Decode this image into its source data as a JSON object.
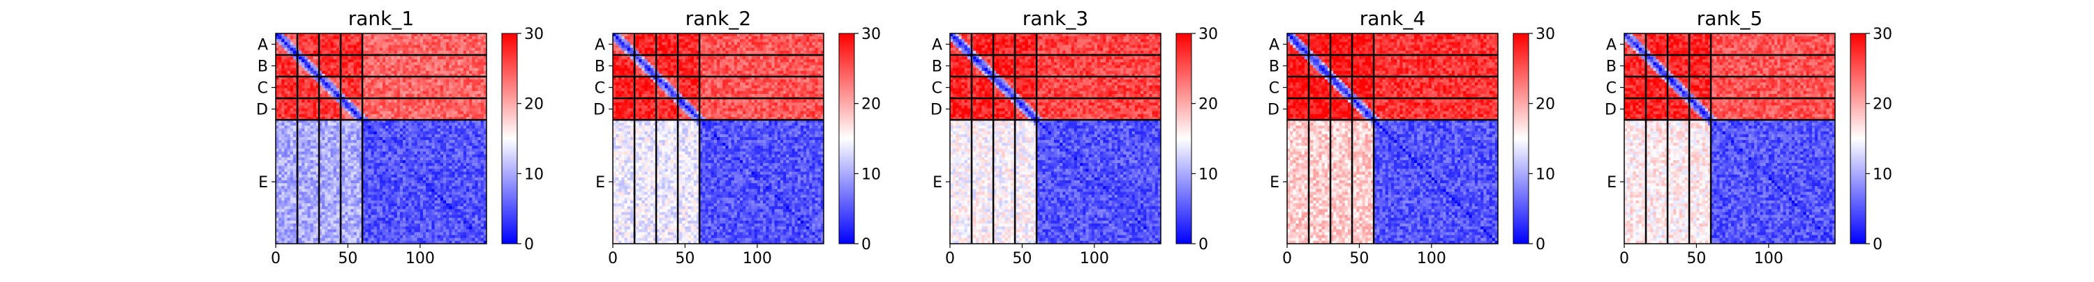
{
  "chart_data": [
    {
      "type": "heatmap",
      "title": "rank_1",
      "chains": [
        "A",
        "B",
        "C",
        "D",
        "E"
      ],
      "chain_boundaries": [
        0,
        15,
        30,
        45,
        60,
        146
      ],
      "n_residues": 146,
      "xticks": [
        0,
        50,
        100
      ],
      "colorbar": {
        "min": 0,
        "max": 30,
        "ticks": [
          0,
          10,
          20,
          30
        ],
        "cmap": "bwr"
      },
      "blocks": {
        "intra_peptide": 24,
        "peptide_peptide": 27,
        "peptide_E": 24,
        "E_peptide": 10,
        "intra_E": 5
      }
    },
    {
      "type": "heatmap",
      "title": "rank_2",
      "chains": [
        "A",
        "B",
        "C",
        "D",
        "E"
      ],
      "chain_boundaries": [
        0,
        15,
        30,
        45,
        60,
        146
      ],
      "n_residues": 146,
      "xticks": [
        0,
        50,
        100
      ],
      "colorbar": {
        "min": 0,
        "max": 30,
        "ticks": [
          0,
          10,
          20,
          30
        ],
        "cmap": "bwr"
      },
      "blocks": {
        "intra_peptide": 25,
        "peptide_peptide": 28,
        "peptide_E": 25,
        "E_peptide": 14,
        "intra_E": 5
      }
    },
    {
      "type": "heatmap",
      "title": "rank_3",
      "chains": [
        "A",
        "B",
        "C",
        "D",
        "E"
      ],
      "chain_boundaries": [
        0,
        15,
        30,
        45,
        60,
        146
      ],
      "n_residues": 146,
      "xticks": [
        0,
        50,
        100
      ],
      "colorbar": {
        "min": 0,
        "max": 30,
        "ticks": [
          0,
          10,
          20,
          30
        ],
        "cmap": "bwr"
      },
      "blocks": {
        "intra_peptide": 26,
        "peptide_peptide": 28,
        "peptide_E": 26,
        "E_peptide": 15,
        "intra_E": 5
      }
    },
    {
      "type": "heatmap",
      "title": "rank_4",
      "chains": [
        "A",
        "B",
        "C",
        "D",
        "E"
      ],
      "chain_boundaries": [
        0,
        15,
        30,
        45,
        60,
        146
      ],
      "n_residues": 146,
      "xticks": [
        0,
        50,
        100
      ],
      "colorbar": {
        "min": 0,
        "max": 30,
        "ticks": [
          0,
          10,
          20,
          30
        ],
        "cmap": "bwr"
      },
      "blocks": {
        "intra_peptide": 27,
        "peptide_peptide": 29,
        "peptide_E": 27,
        "E_peptide": 18,
        "intra_E": 5
      }
    },
    {
      "type": "heatmap",
      "title": "rank_5",
      "chains": [
        "A",
        "B",
        "C",
        "D",
        "E"
      ],
      "chain_boundaries": [
        0,
        15,
        30,
        45,
        60,
        146
      ],
      "n_residues": 146,
      "xticks": [
        0,
        50,
        100
      ],
      "colorbar": {
        "min": 0,
        "max": 30,
        "ticks": [
          0,
          10,
          20,
          30
        ],
        "cmap": "bwr"
      },
      "blocks": {
        "intra_peptide": 26,
        "peptide_peptide": 28,
        "peptide_E": 25,
        "E_peptide": 16,
        "intra_E": 5
      }
    }
  ]
}
